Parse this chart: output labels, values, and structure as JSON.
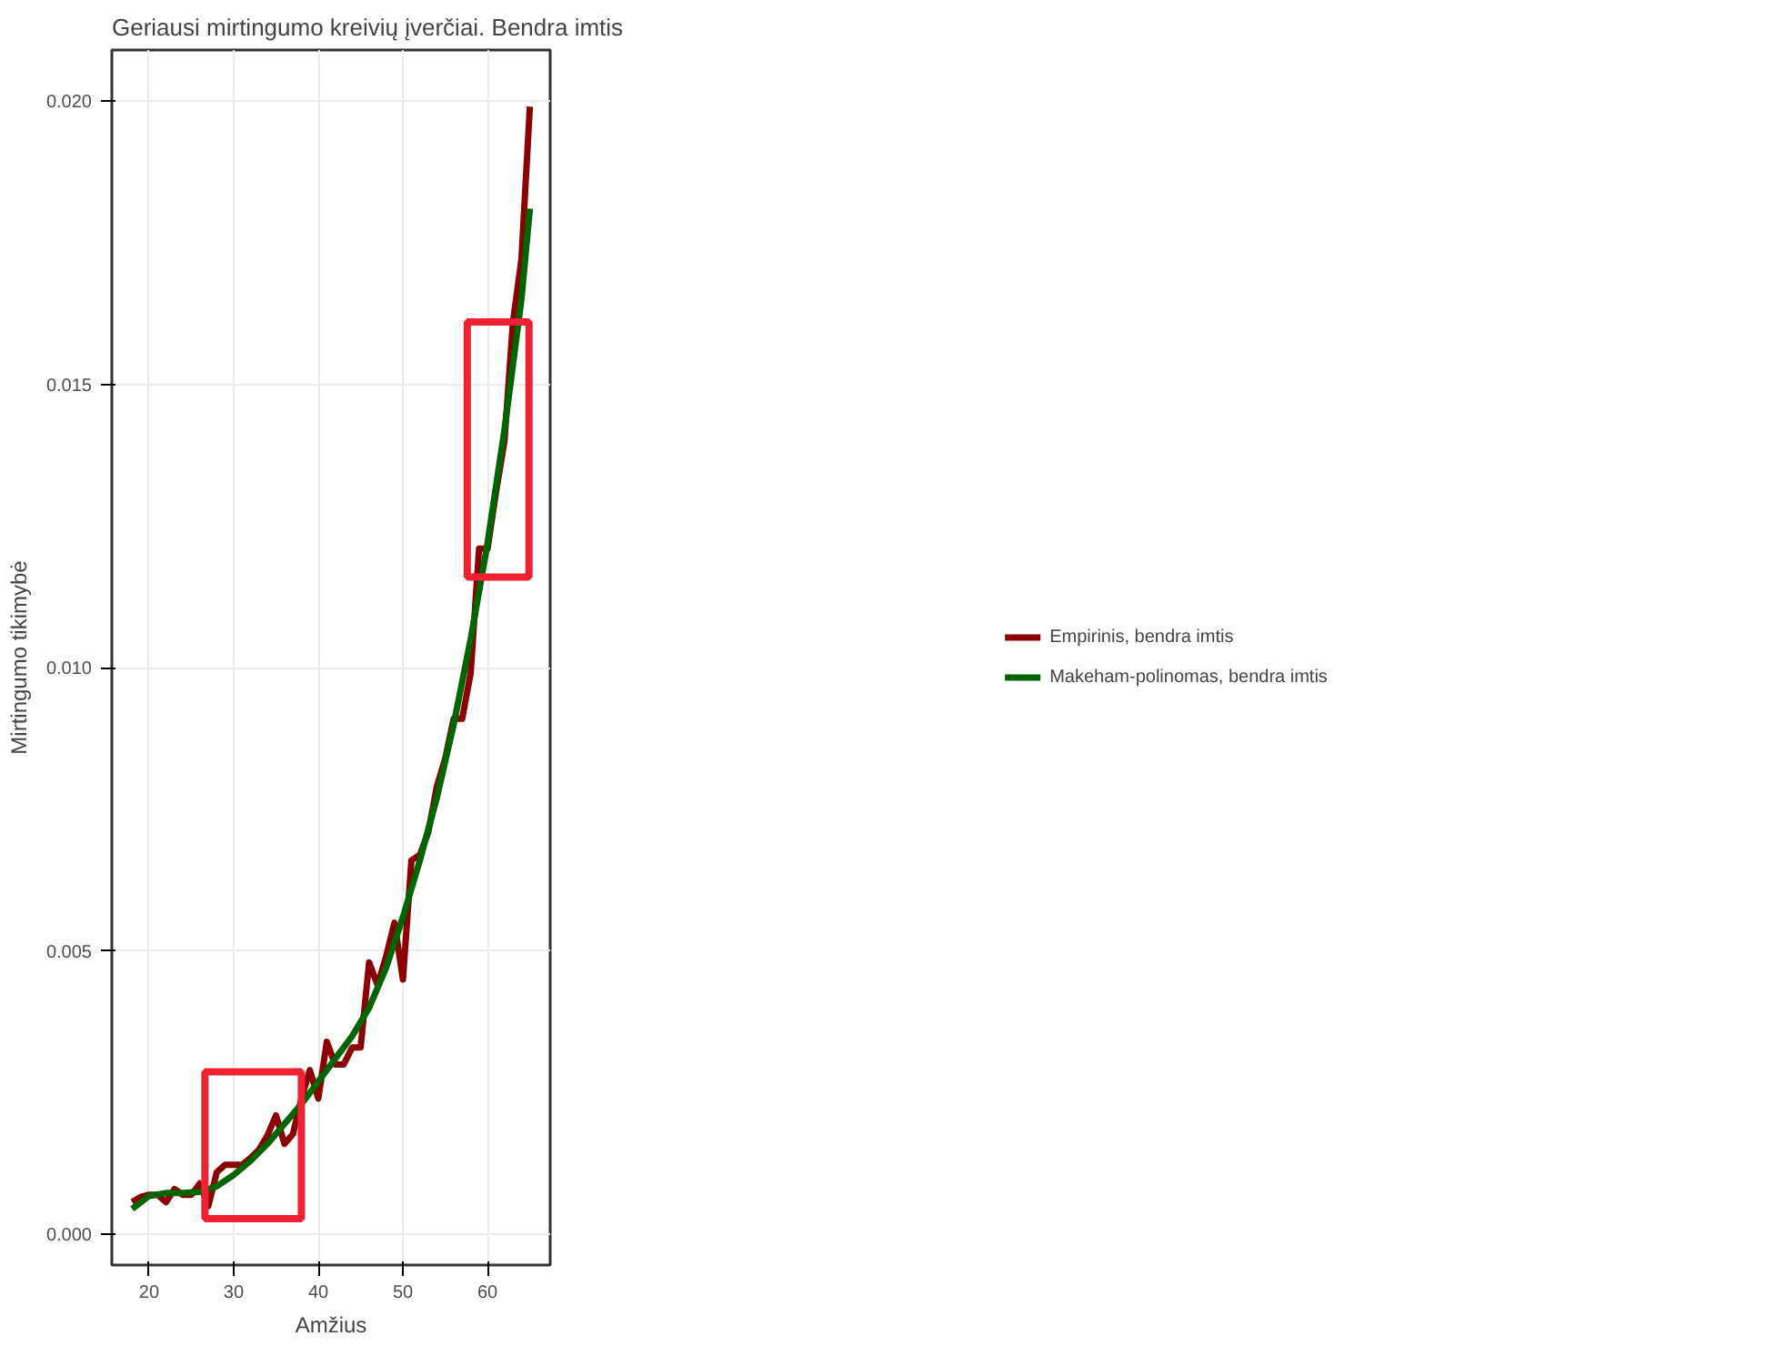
{
  "chart_data": {
    "type": "line",
    "title": "Geriausi mirtingumo kreivių įverčiai. Bendra imtis",
    "xlabel": "Amžius",
    "ylabel": "Mirtingumo tikimybė",
    "xlim": [
      15.6,
      67.4
    ],
    "ylim": [
      -0.00054,
      0.0209
    ],
    "xticks": [
      20,
      30,
      40,
      50,
      60
    ],
    "yticks": [
      {
        "value": 0,
        "label": "0.000"
      },
      {
        "value": 0.005,
        "label": "0.005"
      },
      {
        "value": 0.01,
        "label": "0.010"
      },
      {
        "value": 0.015,
        "label": "0.015"
      },
      {
        "value": 0.02,
        "label": "0.020"
      }
    ],
    "grid": true,
    "legend": "right",
    "series": [
      {
        "name": "Empirinis, bendra imtis",
        "color": "#8b0000",
        "x": [
          18,
          19,
          20,
          21,
          22,
          23,
          24,
          25,
          26,
          27,
          28,
          29,
          30,
          31,
          32,
          33,
          34,
          35,
          36,
          37,
          38,
          39,
          40,
          41,
          42,
          43,
          44,
          45,
          46,
          47,
          48,
          49,
          50,
          51,
          52,
          53,
          54,
          55,
          56,
          57,
          58,
          59,
          60,
          61,
          62,
          63,
          64,
          65
        ],
        "values": [
          0.00057,
          0.00066,
          0.0007,
          0.0007,
          0.00057,
          0.0008,
          0.0007,
          0.0007,
          0.0009,
          0.0005,
          0.0011,
          0.00123,
          0.00123,
          0.00123,
          0.00135,
          0.0015,
          0.00175,
          0.0021,
          0.0016,
          0.00177,
          0.0024,
          0.0029,
          0.0024,
          0.0034,
          0.003,
          0.003,
          0.0033,
          0.0033,
          0.0048,
          0.0044,
          0.0049,
          0.0055,
          0.0045,
          0.0066,
          0.0067,
          0.0071,
          0.0079,
          0.0084,
          0.0091,
          0.0091,
          0.0099,
          0.0121,
          0.0121,
          0.0131,
          0.014,
          0.0161,
          0.0172,
          0.0199
        ]
      },
      {
        "name": "Makeham-polinomas, bendra imtis",
        "color": "#006400",
        "x": [
          18,
          20,
          22,
          24,
          26,
          28,
          30,
          32,
          34,
          36,
          38,
          40,
          42,
          44,
          46,
          48,
          50,
          52,
          54,
          56,
          58,
          60,
          62,
          64,
          65
        ],
        "values": [
          0.00045,
          0.00068,
          0.00073,
          0.00073,
          0.00075,
          0.00085,
          0.00105,
          0.0013,
          0.0016,
          0.00195,
          0.0023,
          0.0027,
          0.0031,
          0.0035,
          0.004,
          0.0047,
          0.0056,
          0.0066,
          0.0077,
          0.009,
          0.0105,
          0.0122,
          0.0142,
          0.0165,
          0.0181
        ]
      }
    ]
  }
}
